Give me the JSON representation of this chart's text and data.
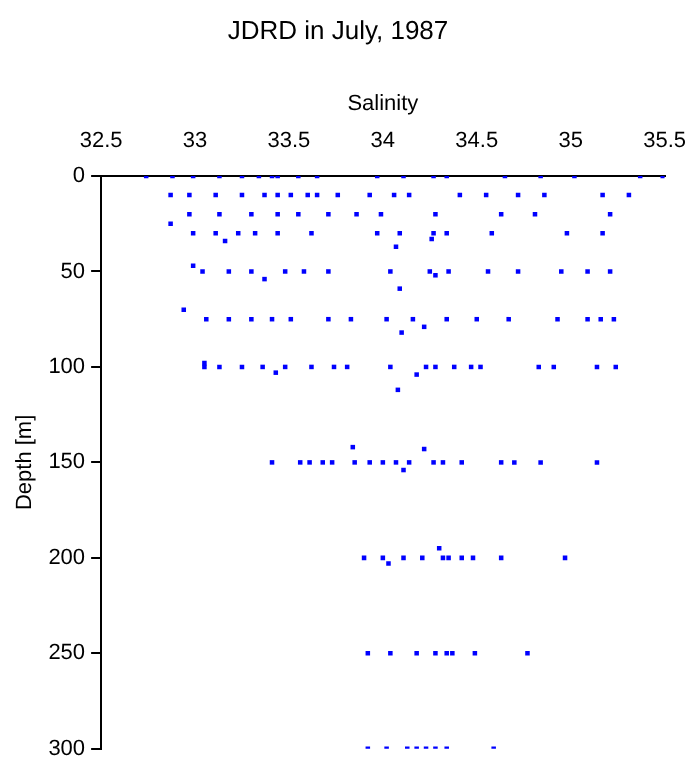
{
  "chart_data": {
    "type": "scatter",
    "title": "JDRD in July, 1987",
    "xlabel": "Salinity",
    "ylabel": "Depth [m]",
    "xlim": [
      32.5,
      35.5
    ],
    "xticks": [
      32.5,
      33,
      33.5,
      34,
      34.5,
      35,
      35.5
    ],
    "ylim": [
      300,
      0
    ],
    "yticks": [
      0,
      50,
      100,
      150,
      200,
      250,
      300
    ],
    "grid": false,
    "legend": false,
    "marker": "square",
    "series": [
      {
        "color": "#0000ff",
        "x": [
          32.74,
          32.88,
          32.99,
          33.13,
          33.25,
          33.34,
          33.41,
          33.44,
          33.55,
          33.65,
          33.97,
          34.11,
          34.27,
          34.34,
          34.65,
          34.84,
          35.02,
          35.37,
          35.49,
          32.87,
          32.97,
          33.11,
          33.25,
          33.37,
          33.44,
          33.51,
          33.6,
          33.65,
          33.76,
          33.93,
          34.06,
          34.14,
          34.41,
          34.55,
          34.72,
          34.86,
          35.17,
          35.31,
          32.97,
          33.13,
          33.3,
          33.44,
          33.55,
          33.71,
          33.86,
          33.99,
          34.28,
          34.63,
          34.81,
          35.21,
          32.87,
          32.99,
          33.11,
          33.23,
          33.32,
          33.44,
          33.62,
          33.97,
          34.09,
          34.27,
          34.34,
          34.58,
          34.98,
          35.17,
          33.16,
          34.07,
          34.26,
          33.04,
          33.18,
          33.3,
          33.48,
          33.58,
          33.71,
          34.04,
          34.25,
          34.35,
          34.56,
          34.72,
          34.95,
          35.09,
          35.21,
          32.99,
          33.37,
          34.09,
          34.28,
          33.06,
          33.18,
          33.3,
          33.41,
          33.51,
          33.71,
          33.83,
          34.02,
          34.16,
          34.34,
          34.5,
          34.67,
          34.93,
          35.09,
          35.16,
          35.23,
          32.94,
          34.1,
          34.22,
          33.05,
          33.13,
          33.25,
          33.36,
          33.48,
          33.62,
          33.74,
          33.81,
          34.04,
          34.23,
          34.28,
          34.38,
          34.47,
          34.52,
          34.83,
          34.91,
          35.14,
          35.24,
          33.05,
          33.43,
          34.18,
          34.08,
          33.41,
          33.56,
          33.61,
          33.68,
          33.73,
          33.85,
          33.93,
          34.0,
          34.07,
          34.14,
          34.27,
          34.32,
          34.42,
          34.63,
          34.7,
          34.84,
          35.14,
          33.84,
          34.22,
          34.11,
          33.9,
          34.0,
          34.11,
          34.21,
          34.32,
          34.35,
          34.42,
          34.48,
          34.63,
          34.97,
          34.3,
          34.03,
          33.92,
          34.04,
          34.18,
          34.28,
          34.34,
          34.37,
          34.49,
          34.77,
          33.92,
          34.02,
          34.13,
          34.18,
          34.23,
          34.28,
          34.34,
          34.59
        ],
        "values": [
          0,
          0,
          0,
          0,
          0,
          0,
          0,
          0,
          0,
          0,
          0,
          0,
          0,
          0,
          0,
          0,
          0,
          0,
          0,
          10,
          10,
          10,
          10,
          10,
          10,
          10,
          10,
          10,
          10,
          10,
          10,
          10,
          10,
          10,
          10,
          10,
          10,
          10,
          20,
          20,
          20,
          20,
          20,
          20,
          20,
          20,
          20,
          20,
          20,
          20,
          25,
          30,
          30,
          30,
          30,
          30,
          30,
          30,
          30,
          30,
          30,
          30,
          30,
          30,
          34,
          37,
          33,
          50,
          50,
          50,
          50,
          50,
          50,
          50,
          50,
          50,
          50,
          50,
          50,
          50,
          50,
          47,
          54,
          59,
          52,
          75,
          75,
          75,
          75,
          75,
          75,
          75,
          75,
          75,
          75,
          75,
          75,
          75,
          75,
          75,
          75,
          70,
          82,
          79,
          100,
          100,
          100,
          100,
          100,
          100,
          100,
          100,
          100,
          100,
          100,
          100,
          100,
          100,
          100,
          100,
          100,
          100,
          98,
          103,
          104,
          112,
          150,
          150,
          150,
          150,
          150,
          150,
          150,
          150,
          150,
          150,
          150,
          150,
          150,
          150,
          150,
          150,
          150,
          142,
          143,
          154,
          200,
          200,
          200,
          200,
          200,
          200,
          200,
          200,
          200,
          200,
          195,
          203,
          250,
          250,
          250,
          250,
          250,
          250,
          250,
          250,
          300,
          300,
          300,
          300,
          300,
          300,
          300,
          300
        ]
      }
    ]
  }
}
